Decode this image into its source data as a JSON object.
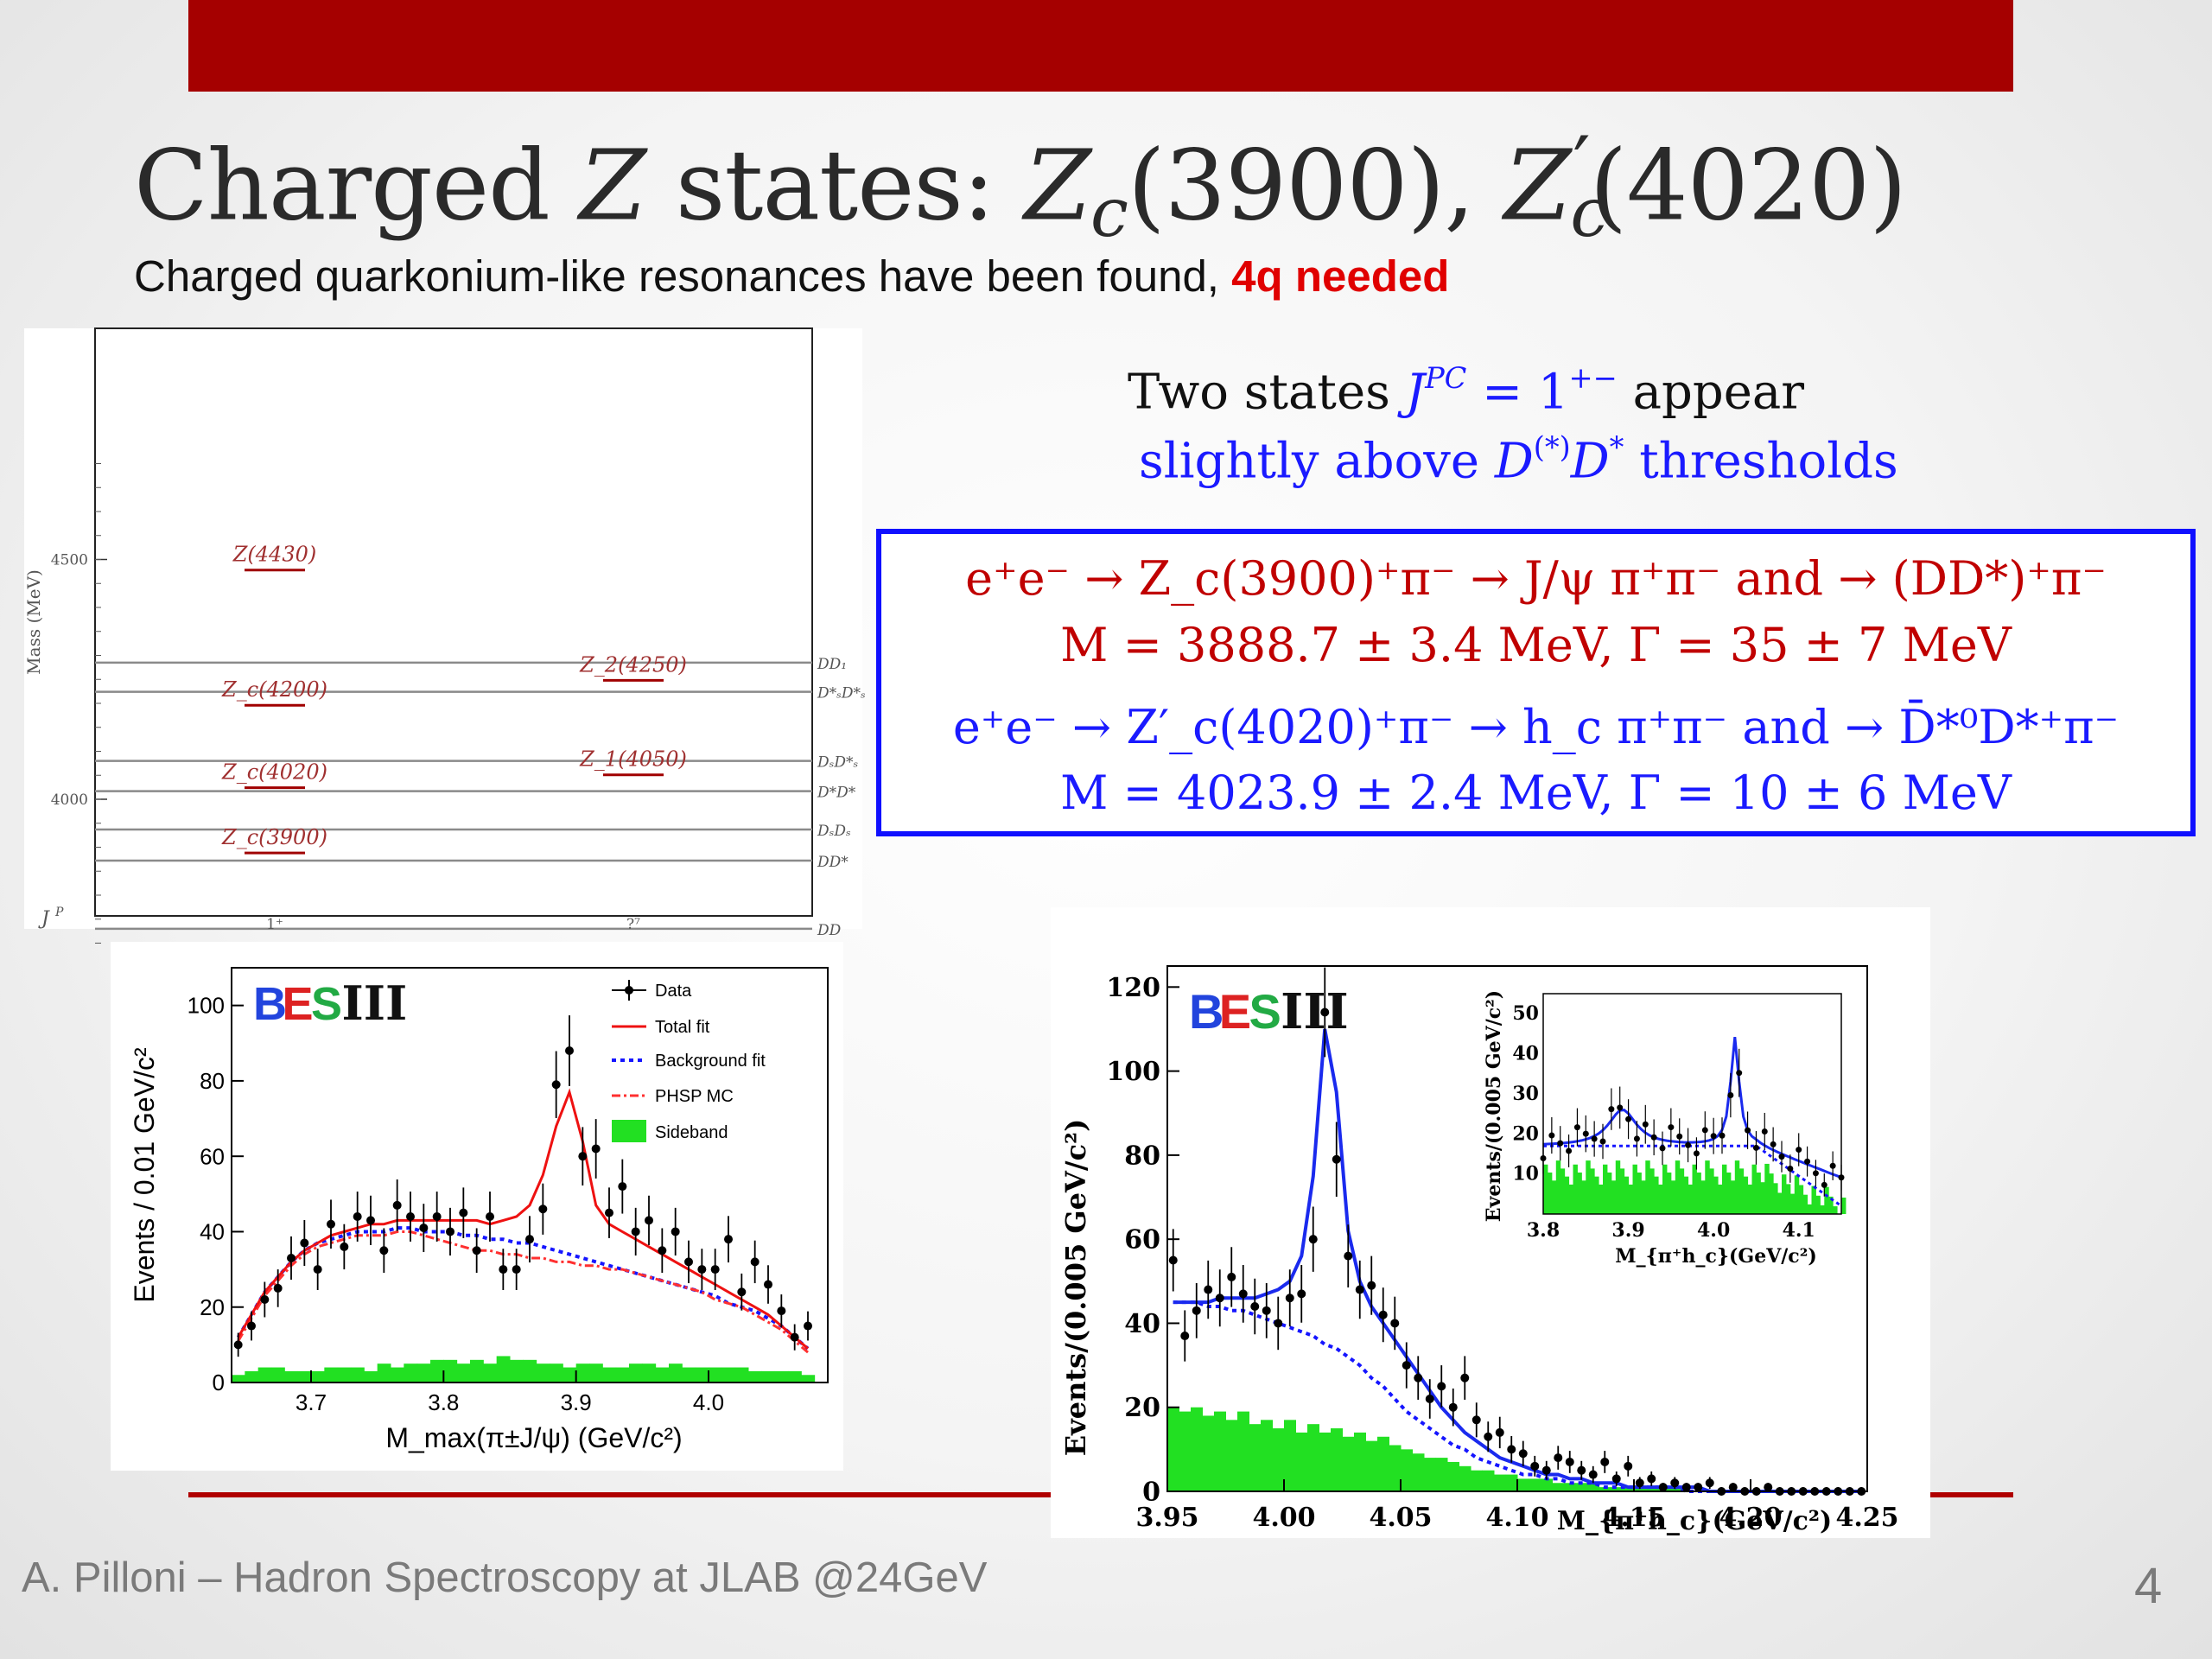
{
  "slide": {
    "title_pre": "Charged ",
    "title_Z": "Z",
    "title_states": " states: ",
    "title_Zc": "Z",
    "title_c1": "c",
    "title_m1": "(3900), ",
    "title_Zc2": "Z",
    "title_c2": "c",
    "title_prime": "′",
    "title_m2": "(4020)",
    "subtitle": "Charged quarkonium-like resonances have been found, ",
    "subtitle_highlight": "4q needed",
    "text1_a": "Two states ",
    "text1_J": "J",
    "text1_PC": "PC",
    "text1_eq": " = 1",
    "text1_sup": "+−",
    "text1_b": " appear",
    "text2_a": "slightly above ",
    "text2_D": "D",
    "text2_star": "(*)",
    "text2_D2": "D",
    "text2_star2": "*",
    "text2_b": " thresholds",
    "box": {
      "l1": "e⁺e⁻ → Z_c(3900)⁺π⁻ → J/ψ π⁺π⁻ and → (DD*)⁺π⁻",
      "l2": "M = 3888.7 ± 3.4 MeV, Γ = 35 ± 7 MeV",
      "l3": "e⁺e⁻ → Z′_c(4020)⁺π⁻ → h_c π⁺π⁻ and → D̄*⁰D*⁺π⁻",
      "l4": "M = 4023.9 ± 2.4 MeV, Γ = 10 ± 6 MeV"
    },
    "footer": "A. Pilloni – Hadron Spectroscopy at JLAB @24GeV",
    "page_number": "4"
  },
  "colors": {
    "bar": "#a50000",
    "box_border": "#1010ff",
    "red_text": "#c00000",
    "blue_text": "#1a1aff",
    "highlight": "#e00000"
  },
  "level_diagram": {
    "ylabel": "Mass (MeV)",
    "xlabel": "J",
    "xlabel_sup": "P",
    "xticks": [
      "1⁺",
      "?⁷"
    ],
    "yticks": [
      "4500",
      "4000"
    ],
    "states": [
      {
        "name": "Z(4430)",
        "mass": 4478,
        "column": "1+"
      },
      {
        "name": "Z_c(4200)",
        "mass": 4196,
        "column": "1+"
      },
      {
        "name": "Z_c(4020)",
        "mass": 4024,
        "column": "1+"
      },
      {
        "name": "Z_c(3900)",
        "mass": 3888,
        "column": "1+"
      },
      {
        "name": "Z_2(4250)",
        "mass": 4248,
        "column": "??"
      },
      {
        "name": "Z_1(4050)",
        "mass": 4051,
        "column": "??"
      }
    ],
    "thresholds": [
      "DD₁",
      "D*ₛD*ₛ",
      "DₛD*ₛ",
      "D*D*",
      "DₛDₛ",
      "DD*",
      "DD"
    ]
  },
  "chart_data": [
    {
      "type": "scatter",
      "logo": "BESIII",
      "xlabel": "M_max(π±J/ψ) (GeV/c²)",
      "ylabel": "Events / 0.01 GeV/c²",
      "xlim": [
        3.64,
        4.09
      ],
      "ylim": [
        0,
        110
      ],
      "xticks": [
        "3.7",
        "3.8",
        "3.9",
        "4.0"
      ],
      "yticks": [
        "0",
        "20",
        "40",
        "60",
        "80",
        "100"
      ],
      "legend": [
        "Data",
        "Total fit",
        "Background fit",
        "PHSP MC",
        "Sideband"
      ],
      "x": [
        3.645,
        3.655,
        3.665,
        3.675,
        3.685,
        3.695,
        3.705,
        3.715,
        3.725,
        3.735,
        3.745,
        3.755,
        3.765,
        3.775,
        3.785,
        3.795,
        3.805,
        3.815,
        3.825,
        3.835,
        3.845,
        3.855,
        3.865,
        3.875,
        3.885,
        3.895,
        3.905,
        3.915,
        3.925,
        3.935,
        3.945,
        3.955,
        3.965,
        3.975,
        3.985,
        3.995,
        4.005,
        4.015,
        4.025,
        4.035,
        4.045,
        4.055,
        4.065,
        4.075
      ],
      "series": [
        {
          "name": "Data",
          "values": [
            10,
            15,
            22,
            25,
            33,
            37,
            30,
            42,
            36,
            44,
            43,
            35,
            47,
            44,
            41,
            44,
            40,
            45,
            35,
            44,
            30,
            30,
            38,
            46,
            79,
            88,
            60,
            62,
            45,
            52,
            40,
            43,
            35,
            40,
            32,
            30,
            30,
            38,
            24,
            32,
            26,
            19,
            12,
            15
          ]
        },
        {
          "name": "Total fit",
          "values": [
            12,
            18,
            24,
            28,
            32,
            35,
            37,
            39,
            40,
            41,
            42,
            42,
            43,
            43,
            43,
            43,
            43,
            43,
            43,
            42,
            43,
            44,
            47,
            55,
            68,
            77,
            64,
            47,
            42,
            40,
            38,
            36,
            34,
            32,
            30,
            28,
            26,
            24,
            22,
            20,
            18,
            15,
            12,
            9
          ]
        },
        {
          "name": "Background fit",
          "values": [
            12,
            18,
            24,
            28,
            32,
            35,
            37,
            38,
            39,
            40,
            40,
            40,
            41,
            41,
            40,
            40,
            40,
            39,
            39,
            38,
            38,
            37,
            37,
            36,
            35,
            34,
            33,
            32,
            31,
            30,
            29,
            28,
            27,
            26,
            25,
            24,
            23,
            21,
            20,
            19,
            17,
            15,
            12,
            9
          ]
        },
        {
          "name": "PHSP MC",
          "values": [
            11,
            17,
            23,
            27,
            31,
            34,
            36,
            37,
            38,
            39,
            39,
            39,
            40,
            40,
            39,
            38,
            37,
            36,
            35,
            35,
            34,
            34,
            33,
            33,
            32,
            32,
            31,
            31,
            30,
            30,
            29,
            28,
            27,
            26,
            25,
            24,
            22,
            21,
            20,
            18,
            16,
            14,
            11,
            8
          ]
        },
        {
          "name": "Sideband",
          "values": [
            2,
            3,
            4,
            4,
            3,
            3,
            3,
            4,
            4,
            4,
            3,
            5,
            4,
            5,
            5,
            6,
            6,
            5,
            6,
            5,
            7,
            6,
            6,
            5,
            5,
            4,
            5,
            5,
            4,
            4,
            5,
            5,
            4,
            5,
            4,
            4,
            4,
            4,
            4,
            3,
            3,
            3,
            3,
            2
          ]
        }
      ]
    },
    {
      "type": "scatter",
      "logo": "BESIII",
      "xlabel": "M_{π⁺h_c}(GeV/c²)",
      "ylabel": "Events/(0.005 GeV/c²)",
      "xlim": [
        3.95,
        4.25
      ],
      "ylim": [
        0,
        125
      ],
      "xticks": [
        "3.95",
        "4.00",
        "4.05",
        "4.10",
        "4.15",
        "4.20",
        "4.25"
      ],
      "yticks": [
        "0",
        "20",
        "40",
        "60",
        "80",
        "100",
        "120"
      ],
      "x": [
        3.9525,
        3.9575,
        3.9625,
        3.9675,
        3.9725,
        3.9775,
        3.9825,
        3.9875,
        3.9925,
        3.9975,
        4.0025,
        4.0075,
        4.0125,
        4.0175,
        4.0225,
        4.0275,
        4.0325,
        4.0375,
        4.0425,
        4.0475,
        4.0525,
        4.0575,
        4.0625,
        4.0675,
        4.0725,
        4.0775,
        4.0825,
        4.0875,
        4.0925,
        4.0975,
        4.1025,
        4.1075,
        4.1125,
        4.1175,
        4.1225,
        4.1275,
        4.1325,
        4.1375,
        4.1425,
        4.1475,
        4.1525,
        4.1575,
        4.1625,
        4.1675,
        4.1725,
        4.1775,
        4.1825,
        4.1875,
        4.1925,
        4.1975,
        4.2025,
        4.2075,
        4.2125,
        4.2175,
        4.2225,
        4.2275,
        4.2325,
        4.2375,
        4.2425,
        4.2475
      ],
      "series": [
        {
          "name": "Data",
          "values": [
            55,
            37,
            43,
            48,
            46,
            51,
            47,
            44,
            43,
            40,
            46,
            47,
            60,
            114,
            79,
            56,
            48,
            49,
            42,
            40,
            30,
            27,
            22,
            25,
            20,
            27,
            17,
            13,
            14,
            10,
            9,
            6,
            5,
            8,
            7,
            5,
            4,
            7,
            3,
            6,
            2,
            3,
            1,
            2,
            1,
            1,
            2,
            0,
            1,
            0,
            0,
            1,
            0,
            0,
            0,
            0,
            0,
            0,
            0,
            0
          ]
        },
        {
          "name": "Total fit",
          "values": [
            45,
            45,
            45,
            45,
            46,
            46,
            46,
            46,
            47,
            48,
            50,
            56,
            75,
            110,
            95,
            62,
            50,
            44,
            40,
            36,
            32,
            28,
            24,
            20,
            17,
            14,
            12,
            10,
            8,
            7,
            6,
            5,
            4,
            4,
            3,
            3,
            2,
            2,
            2,
            1,
            1,
            1,
            1,
            1,
            1,
            1,
            0,
            0,
            0,
            0,
            0,
            0,
            0,
            0,
            0,
            0,
            0,
            0,
            0,
            0
          ]
        },
        {
          "name": "Background fit",
          "values": [
            45,
            45,
            45,
            44,
            44,
            43,
            43,
            42,
            41,
            40,
            39,
            38,
            37,
            35,
            34,
            32,
            30,
            27,
            25,
            22,
            19,
            17,
            15,
            13,
            11,
            10,
            8,
            7,
            6,
            5,
            4,
            4,
            3,
            3,
            2,
            2,
            2,
            1,
            1,
            1,
            1,
            1,
            1,
            1,
            0,
            0,
            0,
            0,
            0,
            0,
            0,
            0,
            0,
            0,
            0,
            0,
            0,
            0,
            0,
            0
          ]
        },
        {
          "name": "Sideband",
          "values": [
            20,
            19,
            20,
            18,
            19,
            17,
            19,
            16,
            17,
            15,
            17,
            14,
            16,
            14,
            15,
            13,
            14,
            12,
            13,
            11,
            10,
            9,
            8,
            8,
            7,
            6,
            5,
            5,
            4,
            4,
            3,
            3,
            3,
            2,
            2,
            2,
            2,
            1,
            1,
            1,
            1,
            1,
            1,
            1,
            0,
            0,
            0,
            0,
            0,
            0,
            0,
            0,
            0,
            0,
            0,
            0,
            0,
            0,
            0,
            0
          ]
        }
      ],
      "inset": {
        "xlabel": "M_{π⁺h_c}(GeV/c²)",
        "ylabel": "Events/(0.005 GeV/c²)",
        "xlim": [
          3.8,
          4.15
        ],
        "ylim": [
          0,
          55
        ],
        "xticks": [
          "3.8",
          "3.9",
          "4.0",
          "4.1"
        ],
        "yticks": [
          "10",
          "20",
          "30",
          "40",
          "50"
        ]
      }
    }
  ]
}
